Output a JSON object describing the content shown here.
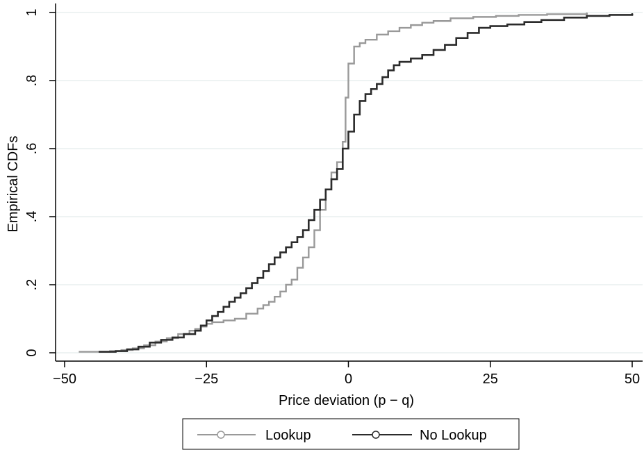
{
  "chart_data": {
    "type": "line",
    "step": true,
    "xlabel": "Price deviation (p − q)",
    "ylabel": "Empirical CDFs",
    "xlim": [
      -50,
      50
    ],
    "ylim": [
      0,
      1
    ],
    "x_ticks": [
      -50,
      -25,
      0,
      25,
      50
    ],
    "x_tick_labels": [
      "−50",
      "−25",
      "0",
      "25",
      "50"
    ],
    "y_ticks": [
      0,
      0.2,
      0.4,
      0.6,
      0.8,
      1
    ],
    "y_tick_labels": [
      "0",
      ".2",
      ".4",
      ".6",
      ".8",
      "1"
    ],
    "grid": "horizontal",
    "legend_position": "bottom",
    "series": [
      {
        "name": "Lookup",
        "color": "#999999",
        "marker": "hollow-circle",
        "points": [
          [
            -47.5,
            0.003
          ],
          [
            -44,
            0.003
          ],
          [
            -42,
            0.005
          ],
          [
            -40,
            0.008
          ],
          [
            -38,
            0.013
          ],
          [
            -36,
            0.022
          ],
          [
            -34,
            0.033
          ],
          [
            -32,
            0.043
          ],
          [
            -30,
            0.055
          ],
          [
            -28,
            0.065
          ],
          [
            -27,
            0.07
          ],
          [
            -26,
            0.077
          ],
          [
            -25,
            0.085
          ],
          [
            -24,
            0.09
          ],
          [
            -22,
            0.095
          ],
          [
            -20,
            0.1
          ],
          [
            -18,
            0.115
          ],
          [
            -16,
            0.13
          ],
          [
            -15,
            0.14
          ],
          [
            -14,
            0.15
          ],
          [
            -13,
            0.165
          ],
          [
            -12,
            0.18
          ],
          [
            -11,
            0.2
          ],
          [
            -10,
            0.215
          ],
          [
            -9,
            0.25
          ],
          [
            -8,
            0.28
          ],
          [
            -7,
            0.31
          ],
          [
            -6,
            0.36
          ],
          [
            -5,
            0.42
          ],
          [
            -4,
            0.48
          ],
          [
            -3,
            0.53
          ],
          [
            -2,
            0.56
          ],
          [
            -1,
            0.62
          ],
          [
            -0.5,
            0.75
          ],
          [
            0,
            0.85
          ],
          [
            1,
            0.9
          ],
          [
            2,
            0.91
          ],
          [
            3,
            0.92
          ],
          [
            5,
            0.935
          ],
          [
            7,
            0.945
          ],
          [
            9,
            0.955
          ],
          [
            11,
            0.963
          ],
          [
            13,
            0.97
          ],
          [
            15,
            0.975
          ],
          [
            18,
            0.983
          ],
          [
            22,
            0.987
          ],
          [
            26,
            0.99
          ],
          [
            30,
            0.993
          ],
          [
            35,
            0.995
          ],
          [
            42,
            0.997
          ]
        ]
      },
      {
        "name": "No Lookup",
        "color": "#2b2b2b",
        "marker": "hollow-circle",
        "points": [
          [
            -44,
            0.003
          ],
          [
            -41,
            0.005
          ],
          [
            -39,
            0.01
          ],
          [
            -37,
            0.018
          ],
          [
            -35,
            0.03
          ],
          [
            -33,
            0.038
          ],
          [
            -31,
            0.045
          ],
          [
            -29,
            0.055
          ],
          [
            -27,
            0.065
          ],
          [
            -26,
            0.08
          ],
          [
            -25,
            0.095
          ],
          [
            -24,
            0.108
          ],
          [
            -23,
            0.12
          ],
          [
            -22,
            0.135
          ],
          [
            -21,
            0.15
          ],
          [
            -20,
            0.162
          ],
          [
            -19,
            0.175
          ],
          [
            -18,
            0.19
          ],
          [
            -17,
            0.205
          ],
          [
            -16,
            0.22
          ],
          [
            -15,
            0.24
          ],
          [
            -14,
            0.26
          ],
          [
            -13,
            0.28
          ],
          [
            -12,
            0.295
          ],
          [
            -11,
            0.31
          ],
          [
            -10,
            0.325
          ],
          [
            -9,
            0.34
          ],
          [
            -8,
            0.36
          ],
          [
            -7,
            0.39
          ],
          [
            -6,
            0.42
          ],
          [
            -5,
            0.45
          ],
          [
            -4,
            0.48
          ],
          [
            -3,
            0.51
          ],
          [
            -2,
            0.54
          ],
          [
            -1,
            0.6
          ],
          [
            0,
            0.65
          ],
          [
            1,
            0.7
          ],
          [
            2,
            0.74
          ],
          [
            3,
            0.76
          ],
          [
            4,
            0.775
          ],
          [
            5,
            0.79
          ],
          [
            6,
            0.81
          ],
          [
            7,
            0.83
          ],
          [
            8,
            0.845
          ],
          [
            9,
            0.855
          ],
          [
            11,
            0.865
          ],
          [
            13,
            0.875
          ],
          [
            15,
            0.89
          ],
          [
            17,
            0.905
          ],
          [
            19,
            0.925
          ],
          [
            21,
            0.94
          ],
          [
            23,
            0.955
          ],
          [
            25,
            0.96
          ],
          [
            28,
            0.965
          ],
          [
            31,
            0.972
          ],
          [
            34,
            0.978
          ],
          [
            38,
            0.985
          ],
          [
            42,
            0.99
          ],
          [
            46,
            0.993
          ],
          [
            50,
            0.995
          ]
        ]
      }
    ]
  }
}
